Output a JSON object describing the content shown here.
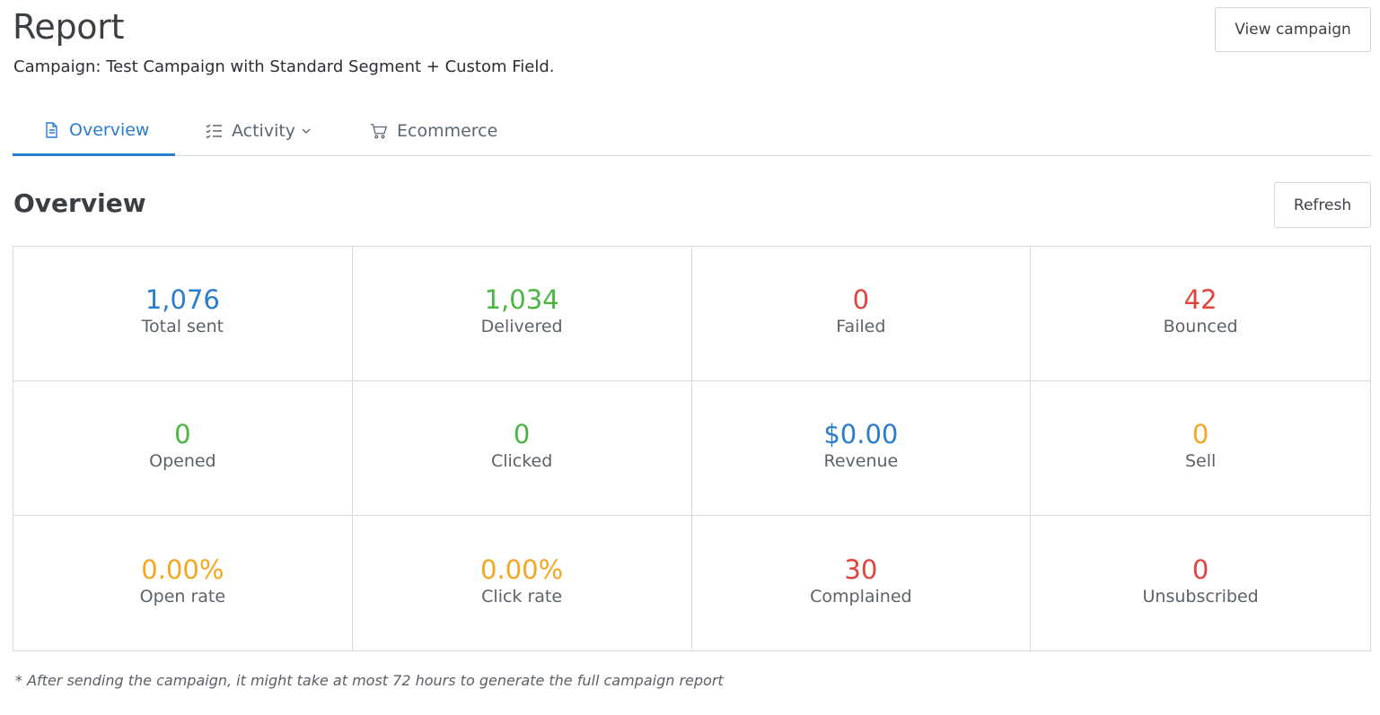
{
  "header": {
    "title": "Report",
    "subtitle": "Campaign: Test Campaign with Standard Segment + Custom Field.",
    "view_campaign_label": "View campaign"
  },
  "tabs": [
    {
      "label": "Overview",
      "icon": "document-icon",
      "active": true
    },
    {
      "label": "Activity",
      "icon": "checklist-icon",
      "active": false
    },
    {
      "label": "Ecommerce",
      "icon": "cart-icon",
      "active": false
    }
  ],
  "overview": {
    "title": "Overview",
    "refresh_label": "Refresh"
  },
  "colors": {
    "blue": "#2a7dcc",
    "green": "#4bb543",
    "red": "#e0443a",
    "orange": "#f5a623"
  },
  "stats": [
    {
      "value": "1,076",
      "label": "Total sent",
      "color": "#2a7dcc"
    },
    {
      "value": "1,034",
      "label": "Delivered",
      "color": "#4bb543"
    },
    {
      "value": "0",
      "label": "Failed",
      "color": "#e0443a"
    },
    {
      "value": "42",
      "label": "Bounced",
      "color": "#e0443a"
    },
    {
      "value": "0",
      "label": "Opened",
      "color": "#4bb543"
    },
    {
      "value": "0",
      "label": "Clicked",
      "color": "#4bb543"
    },
    {
      "value": "$0.00",
      "label": "Revenue",
      "color": "#2a7dcc"
    },
    {
      "value": "0",
      "label": "Sell",
      "color": "#f5a623"
    },
    {
      "value": "0.00%",
      "label": "Open rate",
      "color": "#f5a623"
    },
    {
      "value": "0.00%",
      "label": "Click rate",
      "color": "#f5a623"
    },
    {
      "value": "30",
      "label": "Complained",
      "color": "#e0443a"
    },
    {
      "value": "0",
      "label": "Unsubscribed",
      "color": "#e0443a"
    }
  ],
  "footnote": "* After sending the campaign, it might take at most 72 hours to generate the full campaign report"
}
